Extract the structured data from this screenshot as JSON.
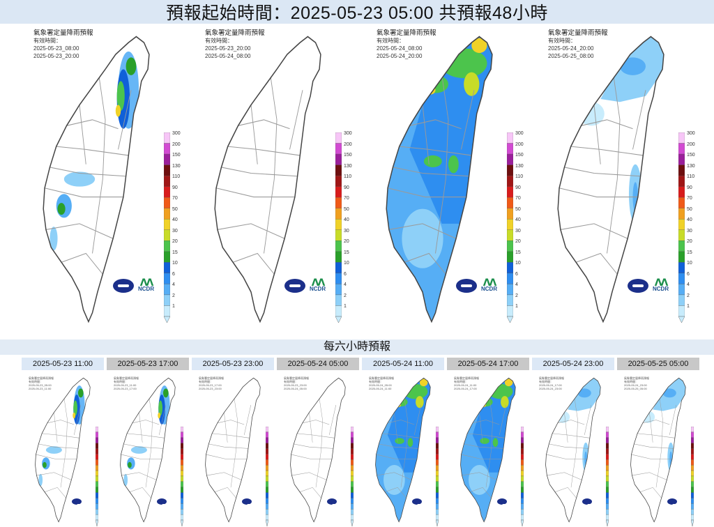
{
  "header": {
    "title": "預報起始時間：2025-05-23 05:00  共預報48小時"
  },
  "legend": {
    "ticks": [
      "300",
      "200",
      "150",
      "130",
      "110",
      "90",
      "70",
      "50",
      "40",
      "30",
      "20",
      "15",
      "10",
      "6",
      "4",
      "2",
      "1"
    ],
    "colors": [
      "#f7c6f7",
      "#d24ad2",
      "#9b1f9b",
      "#6e0f0f",
      "#a01616",
      "#d81c1c",
      "#f05a18",
      "#f0a020",
      "#f0d228",
      "#c8dc28",
      "#4cc44c",
      "#2aa02a",
      "#1060d8",
      "#2e8ef0",
      "#56aef5",
      "#8ed0f8",
      "#c8ecfc"
    ]
  },
  "main_panels": [
    {
      "title": "氣象署定量降雨預報",
      "valid_label": "有效時間：",
      "start": "2025-05-23_08:00",
      "end": "2025-05-23_20:00",
      "intensity": "east"
    },
    {
      "title": "氣象署定量降雨預報",
      "valid_label": "有效時間：",
      "start": "2025-05-23_20:00",
      "end": "2025-05-24_08:00",
      "intensity": "none"
    },
    {
      "title": "氣象署定量降雨預報",
      "valid_label": "有效時間：",
      "start": "2025-05-24_08:00",
      "end": "2025-05-24_20:00",
      "intensity": "heavy"
    },
    {
      "title": "氣象署定量降雨預報",
      "valid_label": "有效時間：",
      "start": "2025-05-24_20:00",
      "end": "2025-05-25_08:00",
      "intensity": "light"
    }
  ],
  "logos": {
    "cwa": "cwa-logo",
    "ncdr": "NCDR"
  },
  "six_hour": {
    "title": "每六小時預報",
    "panels": [
      {
        "label": "2025-05-23 11:00",
        "style": "blue",
        "start": "2025-05-23_05:00",
        "end": "2025-05-23_11:00",
        "intensity": "east"
      },
      {
        "label": "2025-05-23 17:00",
        "style": "gray",
        "start": "2025-05-23_11:00",
        "end": "2025-05-23_17:00",
        "intensity": "east"
      },
      {
        "label": "2025-05-23 23:00",
        "style": "blue",
        "start": "2025-05-23_17:00",
        "end": "2025-05-23_23:00",
        "intensity": "none"
      },
      {
        "label": "2025-05-24 05:00",
        "style": "gray",
        "start": "2025-05-23_23:00",
        "end": "2025-05-24_05:00",
        "intensity": "none"
      },
      {
        "label": "2025-05-24 11:00",
        "style": "blue",
        "start": "2025-05-24_05:00",
        "end": "2025-05-24_11:00",
        "intensity": "heavy"
      },
      {
        "label": "2025-05-24 17:00",
        "style": "gray",
        "start": "2025-05-24_11:00",
        "end": "2025-05-24_17:00",
        "intensity": "heavy"
      },
      {
        "label": "2025-05-24 23:00",
        "style": "blue",
        "start": "2025-05-24_17:00",
        "end": "2025-05-24_23:00",
        "intensity": "light"
      },
      {
        "label": "2025-05-25 05:00",
        "style": "gray",
        "start": "2025-05-24_23:00",
        "end": "2025-05-25_05:00",
        "intensity": "light"
      }
    ]
  }
}
